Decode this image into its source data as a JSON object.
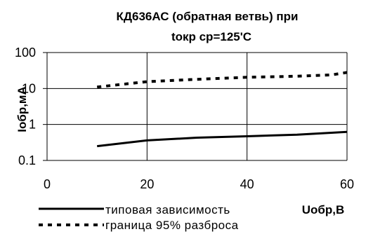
{
  "chart_data": {
    "type": "line",
    "title_line1": "КД636АС (обратная ветвь) при",
    "title_line2": "tокр ср=125'С",
    "xlabel": "Uобр,В",
    "ylabel": "Iобр,мА",
    "xlim": [
      0,
      60
    ],
    "ylim": [
      0.1,
      100
    ],
    "yscale": "log",
    "grid": true,
    "x_ticks": [
      "0",
      "20",
      "40",
      "60"
    ],
    "y_ticks": [
      "0.1",
      "1",
      "10",
      "100"
    ],
    "legend_position": "bottom",
    "series": [
      {
        "name": "типовая зависимость",
        "style": "solid",
        "color": "#000000",
        "x": [
          10,
          20,
          30,
          40,
          50,
          60
        ],
        "y": [
          0.25,
          0.36,
          0.43,
          0.47,
          0.52,
          0.62
        ]
      },
      {
        "name": "граница 95% разброса",
        "style": "dashed",
        "color": "#000000",
        "x": [
          10,
          20,
          30,
          40,
          50,
          57,
          60
        ],
        "y": [
          11,
          15.5,
          18,
          20.5,
          22,
          24,
          28
        ]
      }
    ]
  }
}
